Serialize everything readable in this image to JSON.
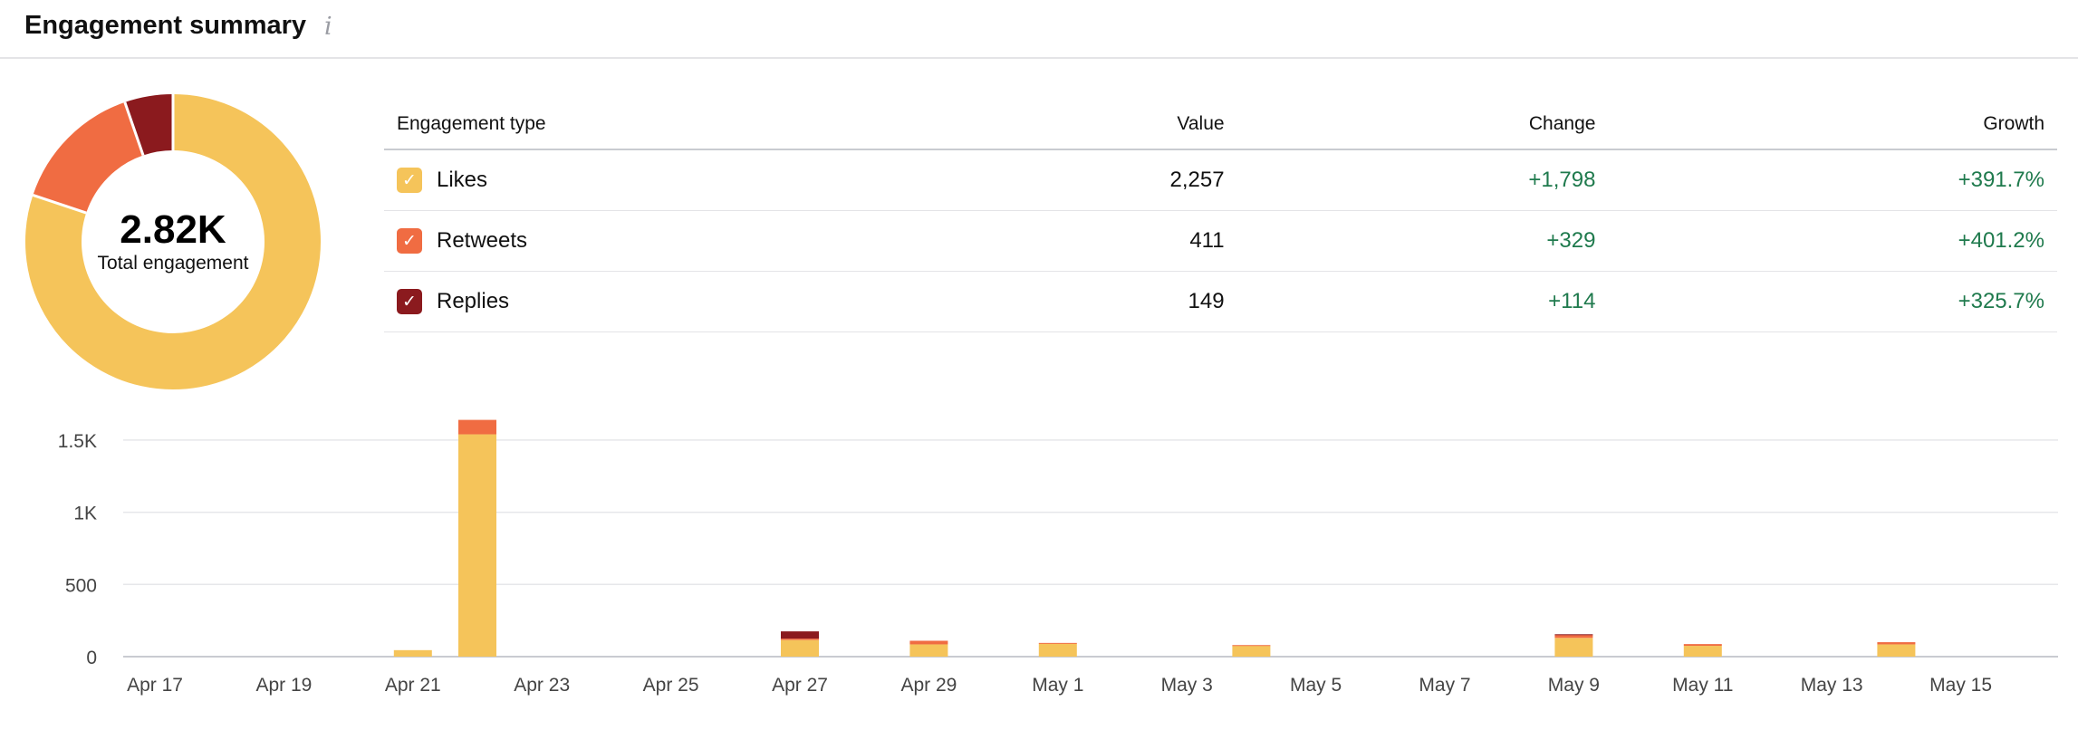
{
  "header": {
    "title": "Engagement summary",
    "info_icon": "info-icon"
  },
  "colors": {
    "likes": "#f5c45a",
    "retweets": "#f06c42",
    "replies": "#8b1a1e",
    "positive": "#1f7a4d"
  },
  "summary": {
    "total_value": "2.82K",
    "total_label": "Total engagement"
  },
  "table": {
    "headers": [
      "Engagement type",
      "Value",
      "Change",
      "Growth"
    ],
    "rows": [
      {
        "label": "Likes",
        "value": "2,257",
        "change": "+1,798",
        "growth": "+391.7%",
        "checked": true
      },
      {
        "label": "Retweets",
        "value": "411",
        "change": "+329",
        "growth": "+401.2%",
        "checked": true
      },
      {
        "label": "Replies",
        "value": "149",
        "change": "+114",
        "growth": "+325.7%",
        "checked": true
      }
    ]
  },
  "chart_data": [
    {
      "type": "pie",
      "labels": [
        "Likes",
        "Retweets",
        "Replies"
      ],
      "values": [
        2257,
        411,
        149
      ],
      "title": ""
    },
    {
      "type": "bar",
      "stacked": true,
      "categories": [
        "Apr 17",
        "Apr 18",
        "Apr 19",
        "Apr 20",
        "Apr 21",
        "Apr 22",
        "Apr 23",
        "Apr 24",
        "Apr 25",
        "Apr 26",
        "Apr 27",
        "Apr 28",
        "Apr 29",
        "Apr 30",
        "May 1",
        "May 2",
        "May 3",
        "May 4",
        "May 5",
        "May 6",
        "May 7",
        "May 8",
        "May 9",
        "May 10",
        "May 11",
        "May 12",
        "May 13",
        "May 14",
        "May 15",
        "May 16"
      ],
      "tick_labels": [
        "Apr 17",
        "Apr 19",
        "Apr 21",
        "Apr 23",
        "Apr 25",
        "Apr 27",
        "Apr 29",
        "May 1",
        "May 3",
        "May 5",
        "May 7",
        "May 9",
        "May 11",
        "May 13",
        "May 15"
      ],
      "series": [
        {
          "name": "Likes",
          "values": [
            0,
            0,
            0,
            0,
            45,
            1540,
            0,
            0,
            0,
            0,
            115,
            0,
            85,
            0,
            90,
            0,
            0,
            75,
            0,
            0,
            0,
            0,
            130,
            0,
            75,
            0,
            0,
            85,
            0,
            0
          ]
        },
        {
          "name": "Retweets",
          "values": [
            0,
            0,
            0,
            0,
            0,
            100,
            0,
            0,
            0,
            0,
            10,
            0,
            25,
            0,
            5,
            0,
            0,
            5,
            0,
            0,
            0,
            0,
            20,
            0,
            12,
            0,
            0,
            15,
            0,
            0
          ]
        },
        {
          "name": "Replies",
          "values": [
            0,
            0,
            0,
            0,
            0,
            0,
            0,
            0,
            0,
            0,
            50,
            0,
            0,
            0,
            0,
            0,
            0,
            0,
            0,
            0,
            0,
            0,
            5,
            0,
            0,
            0,
            0,
            0,
            0,
            0
          ]
        }
      ],
      "yticks": [
        0,
        500,
        1000,
        1500
      ],
      "ytick_labels": [
        "0",
        "500",
        "1K",
        "1.5K"
      ],
      "ylim": [
        0,
        1650
      ],
      "grid": true,
      "xlabel": "",
      "ylabel": "",
      "title": ""
    }
  ]
}
